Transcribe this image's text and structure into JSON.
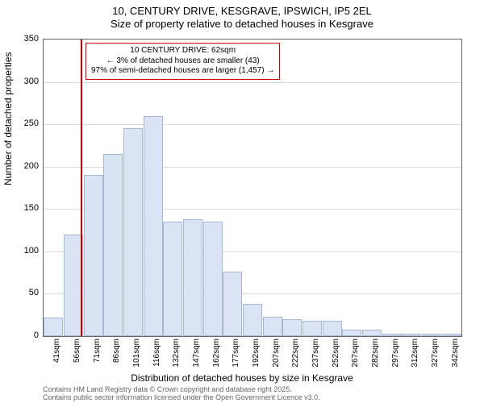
{
  "title": {
    "line1": "10, CENTURY DRIVE, KESGRAVE, IPSWICH, IP5 2EL",
    "line2": "Size of property relative to detached houses in Kesgrave"
  },
  "ylabel": "Number of detached properties",
  "xlabel": "Distribution of detached houses by size in Kesgrave",
  "chart": {
    "type": "histogram",
    "ylim": [
      0,
      350
    ],
    "ytick_step": 50,
    "yticks": [
      0,
      50,
      100,
      150,
      200,
      250,
      300,
      350
    ],
    "bar_color": "#dbe4f5",
    "bar_border_color": "#a7b7d8",
    "grid_color": "#d9d9d9",
    "background_color": "#ffffff",
    "axis_color": "#666666",
    "categories": [
      "41sqm",
      "56sqm",
      "71sqm",
      "86sqm",
      "101sqm",
      "116sqm",
      "132sqm",
      "147sqm",
      "162sqm",
      "177sqm",
      "192sqm",
      "207sqm",
      "222sqm",
      "237sqm",
      "252sqm",
      "267sqm",
      "282sqm",
      "297sqm",
      "312sqm",
      "327sqm",
      "342sqm"
    ],
    "values": [
      22,
      120,
      190,
      215,
      245,
      260,
      135,
      138,
      135,
      76,
      38,
      23,
      20,
      18,
      18,
      8,
      8,
      3,
      3,
      3,
      3
    ],
    "reference_line": {
      "value_index": 1.35,
      "color": "#cc0000",
      "width": 2
    },
    "annotation": {
      "line1": "10 CENTURY DRIVE: 62sqm",
      "line2": "← 3% of detached houses are smaller (43)",
      "line3": "97% of semi-detached houses are larger (1,457) →",
      "border_color": "#cc0000",
      "fontsize": 10
    }
  },
  "footer": {
    "line1": "Contains HM Land Registry data © Crown copyright and database right 2025.",
    "line2": "Contains public sector information licensed under the Open Government Licence v3.0."
  }
}
